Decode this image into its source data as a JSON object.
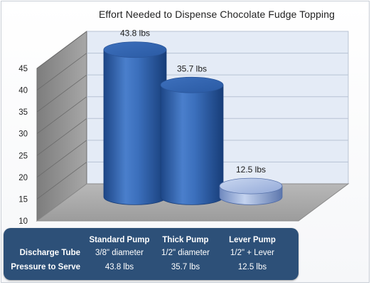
{
  "chart_data": {
    "type": "bar",
    "title": "Effort Needed to Dispense  Chocolate Fudge Topping",
    "categories": [
      "Standard Pump",
      "Thick Pump",
      "Lever Pump"
    ],
    "values": [
      43.8,
      35.7,
      12.5
    ],
    "data_labels": [
      "43.8 lbs",
      "35.7 lbs",
      "12.5 lbs"
    ],
    "ylim": [
      10,
      45
    ],
    "yticks": [
      10,
      15,
      20,
      25,
      30,
      35,
      40,
      45
    ],
    "grid": true,
    "legend": "none",
    "style": "3d-cylinder",
    "colors": {
      "bar": "#3a6fb8",
      "bar_dark": "#1e4a8c",
      "bar_light": "#6f9be0",
      "lever_bar": "#aabde6",
      "back_wall": "#e4ebf6",
      "side_wall": "#8e8e8e",
      "floor": "#a9a9a9",
      "table_bg": "#2d5078"
    }
  },
  "table": {
    "columns": [
      "Standard Pump",
      "Thick Pump",
      "Lever Pump"
    ],
    "rows": [
      {
        "label": "Discharge Tube",
        "values": [
          "3/8\" diameter",
          "1/2\" diameter",
          "1/2\" + Lever"
        ]
      },
      {
        "label": "Pressure to Serve",
        "values": [
          "43.8 lbs",
          "35.7 lbs",
          "12.5 lbs"
        ]
      }
    ]
  }
}
